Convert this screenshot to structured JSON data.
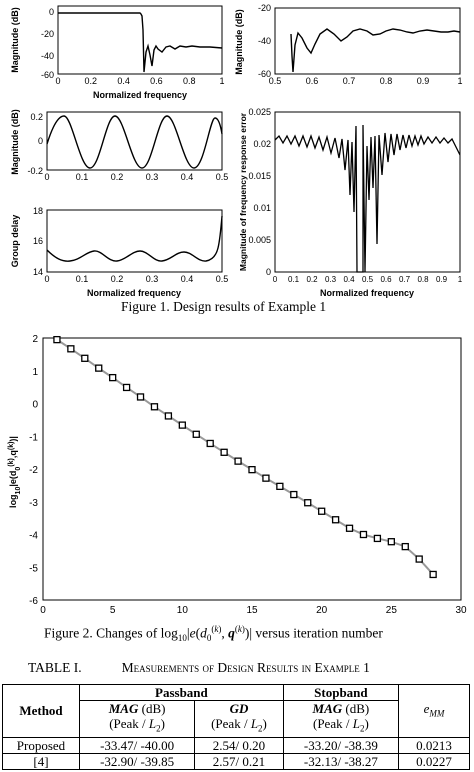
{
  "fig1": {
    "caption": "Figure 1.    Design results of Example 1",
    "plots": {
      "mag": {
        "ylabel": "Magnitude (dB)",
        "xlabel": "Normalized frequency",
        "xticks": [
          "0",
          "0.2",
          "0.4",
          "0.6",
          "0.8",
          "1"
        ],
        "yticks": [
          "0",
          "-20",
          "-40",
          "-60"
        ]
      },
      "stop": {
        "ylabel": "Magnitude (dB)",
        "xlabel": "",
        "xticks": [
          "0.5",
          "0.6",
          "0.7",
          "0.8",
          "0.9",
          "1"
        ],
        "yticks": [
          "-20",
          "-40",
          "-60"
        ]
      },
      "pass": {
        "ylabel": "Magnitude (dB)",
        "xlabel": "",
        "xticks": [
          "0",
          "0.1",
          "0.2",
          "0.3",
          "0.4",
          "0.5"
        ],
        "yticks": [
          "0.2",
          "0",
          "-0.2"
        ]
      },
      "gd": {
        "ylabel": "Group delay",
        "xlabel": "Normalized frequency",
        "xticks": [
          "0",
          "0.1",
          "0.2",
          "0.3",
          "0.4",
          "0.5"
        ],
        "yticks": [
          "18",
          "16",
          "14"
        ]
      },
      "err": {
        "ylabel": "Magnitude of frequency response error",
        "xlabel": "Normalized frequency",
        "xticks": [
          "0",
          "0.1",
          "0.2",
          "0.3",
          "0.4",
          "0.5",
          "0.6",
          "0.7",
          "0.8",
          "0.9",
          "1"
        ],
        "yticks": [
          "0.025",
          "0.02",
          "0.015",
          "0.01",
          "0.005",
          "0"
        ]
      }
    }
  },
  "chart_data": [
    {
      "type": "line",
      "id": "fig2",
      "xlabel": "Nuber of iteration k",
      "ylabel": "log10|e(d0(k),q(k))|",
      "xlim": [
        0,
        30
      ],
      "ylim": [
        -6,
        2
      ],
      "xticks": [
        "0",
        "5",
        "10",
        "15",
        "20",
        "25",
        "30"
      ],
      "yticks": [
        "2",
        "1",
        "0",
        "-1",
        "-2",
        "-3",
        "-4",
        "-5",
        "-6"
      ],
      "x": [
        1,
        2,
        3,
        4,
        5,
        6,
        7,
        8,
        9,
        10,
        11,
        12,
        13,
        14,
        15,
        16,
        17,
        18,
        19,
        20,
        21,
        22,
        23,
        24,
        25,
        26,
        27,
        28
      ],
      "y": [
        1.95,
        1.67,
        1.38,
        1.08,
        0.79,
        0.49,
        0.2,
        -0.1,
        -0.38,
        -0.66,
        -0.94,
        -1.22,
        -1.49,
        -1.76,
        -2.02,
        -2.28,
        -2.53,
        -2.78,
        -3.03,
        -3.29,
        -3.55,
        -3.81,
        -4.0,
        -4.12,
        -4.22,
        -4.37,
        -4.75,
        -5.22
      ]
    }
  ],
  "fig2": {
    "caption": {
      "pre": "Figure 2.    Changes of log",
      "sub": "10",
      "mid": "|e(d",
      "sub0": "0",
      "sup": "(k)",
      "comma": ", q",
      "sup2": "(k)",
      "post": ")| versus iteration number"
    }
  },
  "table": {
    "title_prefix": "TABLE I.",
    "title": "Measurements of Design Results in Example 1",
    "head": {
      "method": "Method",
      "passband": "Passband",
      "stopband": "Stopband",
      "emm": "e",
      "emm_sub": "MM",
      "mag": "MAG",
      "db": " (dB)",
      "peak": "(Peak / L",
      "two": "2",
      ")": ")",
      "gd": "GD"
    },
    "rows": [
      {
        "method": "Proposed",
        "mag_pass": "-33.47/ -40.00",
        "gd": "2.54/ 0.20",
        "mag_stop": "-33.20/ -38.39",
        "emm": "0.0213"
      },
      {
        "method": "[4]",
        "mag_pass": "-32.90/ -39.85",
        "gd": "2.57/ 0.21",
        "mag_stop": "-32.13/ -38.27",
        "emm": "0.0227"
      }
    ]
  }
}
